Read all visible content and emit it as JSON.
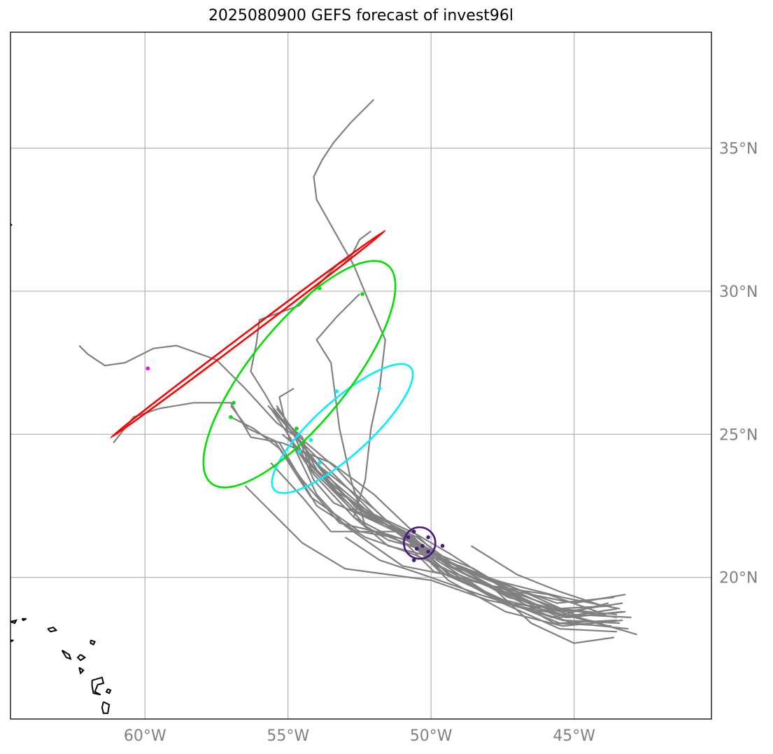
{
  "title": "2025080900 GEFS forecast of invest96l",
  "map": {
    "lon_range": [
      -64.7,
      -40.2
    ],
    "lat_range": [
      15.05,
      39.05
    ],
    "gridlines": true,
    "grid_color": "#b0b0b0",
    "coast_color": "#000000",
    "lon_ticks": [
      {
        "value": -60,
        "label": "60°W"
      },
      {
        "value": -55,
        "label": "55°W"
      },
      {
        "value": -50,
        "label": "50°W"
      },
      {
        "value": -45,
        "label": "45°W"
      }
    ],
    "lat_ticks": [
      {
        "value": 35,
        "label": "35°N"
      },
      {
        "value": 30,
        "label": "30°N"
      },
      {
        "value": 25,
        "label": "25°N"
      },
      {
        "value": 20,
        "label": "20°N"
      }
    ]
  },
  "track_color": "#808080",
  "tracks": [
    [
      [
        -43.2,
        19.4
      ],
      [
        -45,
        19.1
      ],
      [
        -47,
        19.5
      ],
      [
        -49,
        20.3
      ],
      [
        -50.5,
        21.4
      ],
      [
        -52.5,
        22.4
      ],
      [
        -54.5,
        24.2
      ],
      [
        -55,
        25
      ],
      [
        -55.6,
        25.9
      ]
    ],
    [
      [
        -43.3,
        19.1
      ],
      [
        -45.3,
        18.8
      ],
      [
        -47.3,
        19.3
      ],
      [
        -49.3,
        20.4
      ],
      [
        -50.8,
        21.5
      ],
      [
        -52.8,
        22.4
      ],
      [
        -54.2,
        23.8
      ],
      [
        -54.6,
        24.8
      ],
      [
        -55.4,
        26
      ]
    ],
    [
      [
        -43.5,
        18.9
      ],
      [
        -45.5,
        18.6
      ],
      [
        -47.5,
        19.5
      ],
      [
        -49.5,
        20.6
      ],
      [
        -51,
        21.6
      ],
      [
        -53.5,
        21.6
      ],
      [
        -54.5,
        22.8
      ],
      [
        -55.6,
        24
      ]
    ],
    [
      [
        -43.5,
        18.6
      ],
      [
        -45.5,
        18.9
      ],
      [
        -47.5,
        19.1
      ],
      [
        -49.5,
        20.2
      ],
      [
        -50.7,
        21.3
      ],
      [
        -52.5,
        21.6
      ],
      [
        -54.2,
        22.8
      ],
      [
        -55.3,
        24.5
      ],
      [
        -56.2,
        25.2
      ],
      [
        -57,
        25.6
      ]
    ],
    [
      [
        -43.1,
        18.2
      ],
      [
        -45,
        18.4
      ],
      [
        -47,
        19
      ],
      [
        -49.2,
        20
      ],
      [
        -50.4,
        21
      ],
      [
        -52.2,
        21.7
      ],
      [
        -53.7,
        23.4
      ],
      [
        -54.4,
        24.2
      ]
    ],
    [
      [
        -43.3,
        18.5
      ],
      [
        -45.4,
        18.3
      ],
      [
        -47.4,
        18.8
      ],
      [
        -49.4,
        19.9
      ],
      [
        -50.3,
        20.8
      ],
      [
        -52,
        22.4
      ],
      [
        -53.3,
        23.8
      ],
      [
        -54.6,
        24.9
      ],
      [
        -55.4,
        25.9
      ]
    ],
    [
      [
        -43.6,
        17.9
      ],
      [
        -44.3,
        17.8
      ],
      [
        -45,
        17.7
      ],
      [
        -46.5,
        18.4
      ],
      [
        -47.8,
        19.6
      ],
      [
        -49.4,
        20.4
      ],
      [
        -50,
        21
      ],
      [
        -52,
        22.9
      ],
      [
        -53.5,
        24
      ],
      [
        -55.2,
        24.7
      ],
      [
        -56.3,
        24.9
      ],
      [
        -57,
        26.1
      ],
      [
        -58.3,
        26.1
      ],
      [
        -59.5,
        25.9
      ],
      [
        -60.4,
        25.6
      ],
      [
        -61.1,
        24.7
      ]
    ],
    [
      [
        -42.8,
        18
      ],
      [
        -44.5,
        18.5
      ],
      [
        -46.5,
        19.1
      ],
      [
        -48.5,
        20.3
      ],
      [
        -50,
        20.9
      ],
      [
        -51.5,
        21.3
      ],
      [
        -52.3,
        21.8
      ],
      [
        -52.8,
        23.4
      ],
      [
        -53.2,
        25.2
      ],
      [
        -53.5,
        27.5
      ],
      [
        -54,
        28.3
      ],
      [
        -53.3,
        29.1
      ],
      [
        -52.5,
        29.9
      ]
    ],
    [
      [
        -43,
        18.6
      ],
      [
        -45,
        18.7
      ],
      [
        -47,
        19.6
      ],
      [
        -49,
        20.4
      ],
      [
        -50.3,
        20.8
      ],
      [
        -51.5,
        21.1
      ],
      [
        -52.7,
        22.1
      ],
      [
        -52.3,
        23.4
      ],
      [
        -52.1,
        25.2
      ],
      [
        -51.8,
        26.6
      ],
      [
        -51.6,
        28.3
      ],
      [
        -52.2,
        29.7
      ],
      [
        -52.7,
        30.9
      ],
      [
        -53.1,
        31.6
      ],
      [
        -54,
        33.2
      ],
      [
        -54.1,
        34
      ],
      [
        -53.8,
        34.6
      ],
      [
        -53.4,
        35.2
      ],
      [
        -52.8,
        35.9
      ],
      [
        -52,
        36.7
      ]
    ],
    [
      [
        -43.5,
        18.7
      ],
      [
        -45.5,
        18.9
      ],
      [
        -47.5,
        19.6
      ],
      [
        -49.5,
        20.1
      ],
      [
        -51,
        20.4
      ],
      [
        -53,
        21.8
      ],
      [
        -54,
        22.9
      ],
      [
        -55,
        25
      ],
      [
        -55.3,
        26.3
      ],
      [
        -54.8,
        26.6
      ]
    ],
    [
      [
        -43.5,
        18.1
      ],
      [
        -45.5,
        18.2
      ],
      [
        -47.5,
        19.1
      ],
      [
        -49.5,
        20.3
      ],
      [
        -50.6,
        20.8
      ],
      [
        -52.3,
        21.4
      ],
      [
        -54,
        22.5
      ],
      [
        -55.3,
        24.7
      ],
      [
        -56.4,
        25.2
      ],
      [
        -57,
        26
      ]
    ],
    [
      [
        -43.8,
        18.3
      ],
      [
        -45.8,
        18.8
      ],
      [
        -47.8,
        19.3
      ],
      [
        -49.8,
        20.6
      ],
      [
        -50.7,
        21.5
      ],
      [
        -52.5,
        22.2
      ],
      [
        -53.4,
        22.6
      ],
      [
        -54.1,
        23.4
      ],
      [
        -54.8,
        25
      ],
      [
        -55.5,
        25.9
      ]
    ],
    [
      [
        -44,
        18.4
      ],
      [
        -46,
        18.8
      ],
      [
        -48,
        19.2
      ],
      [
        -50,
        19.9
      ],
      [
        -51.5,
        20.1
      ],
      [
        -53,
        20.3
      ],
      [
        -54.5,
        21.2
      ],
      [
        -55.6,
        22.3
      ],
      [
        -56.5,
        23.2
      ]
    ],
    [
      [
        -43.4,
        18.9
      ],
      [
        -45.4,
        19.3
      ],
      [
        -47.4,
        19.8
      ],
      [
        -49.4,
        20.4
      ],
      [
        -50.6,
        21.3
      ],
      [
        -52.5,
        22.2
      ],
      [
        -54.2,
        23.9
      ],
      [
        -54.5,
        24.9
      ],
      [
        -55.4,
        25.7
      ],
      [
        -55.8,
        26.4
      ],
      [
        -56.3,
        27.2
      ],
      [
        -56.1,
        28.2
      ],
      [
        -56,
        29
      ],
      [
        -54.6,
        29.5
      ],
      [
        -53.3,
        30.9
      ],
      [
        -52.8,
        31.2
      ],
      [
        -52.5,
        31.8
      ],
      [
        -52.1,
        32.1
      ]
    ],
    [
      [
        -43.6,
        19.3
      ],
      [
        -45.6,
        19.1
      ],
      [
        -47.6,
        19.8
      ],
      [
        -49.6,
        20.6
      ],
      [
        -50.9,
        21.5
      ],
      [
        -52.6,
        22.4
      ],
      [
        -54,
        24
      ],
      [
        -54.7,
        24.9
      ],
      [
        -55.4,
        25.4
      ],
      [
        -56.5,
        26.6
      ],
      [
        -57.5,
        27.6
      ],
      [
        -58.9,
        28.1
      ],
      [
        -59.7,
        28
      ],
      [
        -60.7,
        27.5
      ],
      [
        -61.4,
        27.4
      ],
      [
        -62,
        27.8
      ],
      [
        -62.3,
        28.1
      ]
    ],
    [
      [
        -43.3,
        18.8
      ],
      [
        -45.3,
        18.6
      ],
      [
        -47.3,
        19.5
      ],
      [
        -49.3,
        20.8
      ],
      [
        -50.5,
        21.5
      ],
      [
        -52,
        22.2
      ],
      [
        -53.3,
        23
      ],
      [
        -54.4,
        24.5
      ]
    ],
    [
      [
        -43.7,
        19
      ],
      [
        -45.7,
        18.9
      ],
      [
        -47.7,
        19.8
      ],
      [
        -49.7,
        20.7
      ],
      [
        -50.6,
        21.2
      ],
      [
        -51.5,
        21.5
      ],
      [
        -53.2,
        21.9
      ],
      [
        -54.5,
        23.4
      ],
      [
        -55.5,
        24.8
      ]
    ],
    [
      [
        -43.4,
        18.4
      ],
      [
        -45.4,
        18.5
      ],
      [
        -47.4,
        19.1
      ],
      [
        -49.4,
        20.1
      ],
      [
        -50.2,
        20.9
      ],
      [
        -51.8,
        22
      ],
      [
        -53.2,
        23.4
      ],
      [
        -54.7,
        24.9
      ],
      [
        -55.7,
        26
      ]
    ],
    [
      [
        -43.9,
        18.7
      ],
      [
        -45.9,
        19.4
      ],
      [
        -47.9,
        19.7
      ],
      [
        -49.9,
        20.2
      ],
      [
        -50.8,
        21.1
      ],
      [
        -52.7,
        22.1
      ],
      [
        -54.1,
        23.6
      ],
      [
        -55,
        24.9
      ]
    ],
    [
      [
        -43.5,
        18.5
      ],
      [
        -45.5,
        18.4
      ],
      [
        -47.5,
        19.2
      ],
      [
        -49.5,
        20.1
      ],
      [
        -50.4,
        20.9
      ],
      [
        -52,
        22.4
      ],
      [
        -53.8,
        23.8
      ],
      [
        -55.2,
        25
      ]
    ],
    [
      [
        -43.8,
        19.1
      ],
      [
        -45.8,
        18.6
      ],
      [
        -47.8,
        19.6
      ],
      [
        -49.8,
        20.4
      ],
      [
        -50.7,
        21.2
      ],
      [
        -52.2,
        22.3
      ],
      [
        -53.6,
        23.5
      ],
      [
        -54.9,
        25.1
      ]
    ],
    [
      [
        -43.2,
        18.8
      ],
      [
        -45.2,
        18.6
      ],
      [
        -47.2,
        19.4
      ],
      [
        -49.2,
        20.3
      ],
      [
        -50.5,
        21.2
      ],
      [
        -52.3,
        22.3
      ],
      [
        -53.9,
        23.6
      ],
      [
        -54.3,
        24.3
      ]
    ],
    [
      [
        -43.7,
        18.3
      ],
      [
        -45.7,
        18.4
      ],
      [
        -46.4,
        18.8
      ],
      [
        -48.3,
        19.4
      ],
      [
        -50.3,
        20.1
      ],
      [
        -51.8,
        20.6
      ],
      [
        -53,
        21.4
      ]
    ],
    [
      [
        -44,
        19
      ],
      [
        -45.5,
        19.5
      ],
      [
        -47,
        20.1
      ],
      [
        -48.6,
        21.1
      ]
    ]
  ],
  "ellipses": [
    {
      "name": "purple",
      "color": "#4b1780",
      "center": [
        -50.4,
        21.2
      ],
      "rx": 0.55,
      "ry": 0.55,
      "rot": 0
    },
    {
      "name": "cyan",
      "color": "#00f0ff",
      "center": [
        -53.1,
        25.2
      ],
      "rx": 3.2,
      "ry": 0.95,
      "rot": -42
    },
    {
      "name": "green",
      "color": "#00e000",
      "center": [
        -54.6,
        27.1
      ],
      "rx": 4.9,
      "ry": 1.7,
      "rot": -51
    },
    {
      "name": "red",
      "color": "#ff0000",
      "center": [
        -56.4,
        28.5
      ],
      "rx": 6.0,
      "ry": 0.08,
      "rot": -37
    }
  ],
  "points": [
    {
      "color": "#4b1780",
      "pts": [
        [
          -50.6,
          21.6
        ],
        [
          -50.1,
          21.4
        ],
        [
          -50.8,
          21.4
        ],
        [
          -50.3,
          21.1
        ],
        [
          -50.5,
          21
        ],
        [
          -50.1,
          20.9
        ],
        [
          -50.6,
          20.6
        ],
        [
          -49.6,
          21.1
        ]
      ]
    },
    {
      "color": "#00f0ff",
      "pts": [
        [
          -51.8,
          26.6
        ],
        [
          -53.3,
          26.5
        ],
        [
          -54.2,
          24.8
        ],
        [
          -54.6,
          24.4
        ],
        [
          -53.9,
          24
        ]
      ]
    },
    {
      "color": "#00e000",
      "pts": [
        [
          -53.9,
          30.1
        ],
        [
          -52.4,
          29.9
        ],
        [
          -56.9,
          26.1
        ],
        [
          -57,
          25.6
        ],
        [
          -54.7,
          25.2
        ]
      ]
    },
    {
      "color": "#ff00ff",
      "pts": [
        [
          -59.9,
          27.3
        ]
      ]
    }
  ],
  "coast": [
    [
      [
        -63.4,
        18.2
      ],
      [
        -63.2,
        18.25
      ],
      [
        -63.1,
        18.15
      ],
      [
        -63.3,
        18.1
      ],
      [
        -63.4,
        18.2
      ]
    ],
    [
      [
        -62.9,
        17.45
      ],
      [
        -62.65,
        17.3
      ],
      [
        -62.6,
        17.15
      ],
      [
        -62.75,
        17.2
      ],
      [
        -62.9,
        17.45
      ]
    ],
    [
      [
        -62.25,
        17.3
      ],
      [
        -62.1,
        17.2
      ],
      [
        -62.25,
        17.1
      ],
      [
        -62.35,
        17.2
      ],
      [
        -62.25,
        17.3
      ]
    ],
    [
      [
        -61.9,
        17.8
      ],
      [
        -61.75,
        17.75
      ],
      [
        -61.8,
        17.65
      ],
      [
        -61.9,
        17.7
      ],
      [
        -61.9,
        17.8
      ]
    ],
    [
      [
        -61.85,
        16.4
      ],
      [
        -61.5,
        16.5
      ],
      [
        -61.45,
        16.3
      ],
      [
        -61.65,
        16.25
      ],
      [
        -61.75,
        16.0
      ],
      [
        -61.55,
        15.9
      ],
      [
        -61.8,
        15.95
      ],
      [
        -61.85,
        16.2
      ],
      [
        -61.85,
        16.4
      ]
    ],
    [
      [
        -61.3,
        16.1
      ],
      [
        -61.2,
        16.05
      ],
      [
        -61.25,
        15.95
      ],
      [
        -61.35,
        16.0
      ],
      [
        -61.3,
        16.1
      ]
    ],
    [
      [
        -61.45,
        15.65
      ],
      [
        -61.25,
        15.55
      ],
      [
        -61.3,
        15.25
      ],
      [
        -61.45,
        15.25
      ],
      [
        -61.5,
        15.45
      ],
      [
        -61.45,
        15.65
      ]
    ],
    [
      [
        -62.3,
        16.85
      ],
      [
        -62.15,
        16.75
      ],
      [
        -62.25,
        16.65
      ],
      [
        -62.3,
        16.85
      ]
    ],
    [
      [
        -64.7,
        18.45
      ],
      [
        -64.5,
        18.5
      ],
      [
        -64.55,
        18.4
      ],
      [
        -64.7,
        18.45
      ]
    ],
    [
      [
        -64.3,
        18.55
      ],
      [
        -64.15,
        18.55
      ],
      [
        -64.25,
        18.5
      ],
      [
        -64.3,
        18.55
      ]
    ],
    [
      [
        -64.7,
        17.8
      ],
      [
        -64.6,
        17.8
      ],
      [
        -64.7,
        17.75
      ]
    ],
    [
      [
        -64.7,
        32.35
      ],
      [
        -64.65,
        32.3
      ]
    ]
  ]
}
